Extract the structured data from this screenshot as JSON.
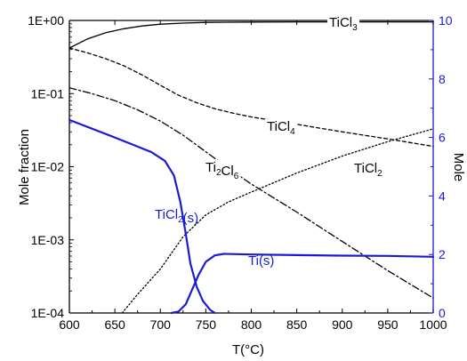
{
  "chart_data": {
    "type": "line",
    "xlabel": "T(°C)",
    "ylabel_left": "Mole fraction",
    "ylabel_right": "Mole",
    "x_range": [
      600,
      1000
    ],
    "x_ticks": [
      600,
      650,
      700,
      750,
      800,
      850,
      900,
      950,
      1000
    ],
    "y_left_log": true,
    "y_left_range": [
      0.0001,
      1
    ],
    "y_left_ticks": [
      {
        "value": 1,
        "label": "1E+00"
      },
      {
        "value": 0.1,
        "label": "1E-01"
      },
      {
        "value": 0.01,
        "label": "1E-02"
      },
      {
        "value": 0.001,
        "label": "1E-03"
      },
      {
        "value": 0.0001,
        "label": "1E-04"
      }
    ],
    "y_right_range": [
      0,
      10
    ],
    "y_right_ticks": [
      0,
      2,
      4,
      6,
      8,
      10
    ],
    "colors": {
      "left_axis": "#000000",
      "right_axis": "#1a1ad6",
      "gas_series": "#000000",
      "solid_series": "#1a1ad6"
    },
    "grid": false,
    "series": [
      {
        "name": "TiCl3",
        "label_main": "TiCl",
        "label_sub": "3",
        "axis": "left",
        "style": "solid",
        "points": [
          [
            600,
            0.42
          ],
          [
            620,
            0.56
          ],
          [
            640,
            0.68
          ],
          [
            660,
            0.77
          ],
          [
            680,
            0.84
          ],
          [
            700,
            0.89
          ],
          [
            725,
            0.92
          ],
          [
            750,
            0.94
          ],
          [
            800,
            0.95
          ],
          [
            850,
            0.955
          ],
          [
            900,
            0.955
          ],
          [
            950,
            0.955
          ],
          [
            1000,
            0.955
          ]
        ]
      },
      {
        "name": "TiCl4",
        "label_main": "TiCl",
        "label_sub": "4",
        "axis": "left",
        "style": "dash",
        "points": [
          [
            600,
            0.42
          ],
          [
            620,
            0.36
          ],
          [
            640,
            0.3
          ],
          [
            660,
            0.24
          ],
          [
            680,
            0.18
          ],
          [
            700,
            0.13
          ],
          [
            720,
            0.095
          ],
          [
            740,
            0.075
          ],
          [
            760,
            0.062
          ],
          [
            780,
            0.054
          ],
          [
            800,
            0.048
          ],
          [
            850,
            0.038
          ],
          [
            900,
            0.03
          ],
          [
            950,
            0.024
          ],
          [
            1000,
            0.019
          ]
        ]
      },
      {
        "name": "Ti2Cl6",
        "label_main": "Ti",
        "label_sub": "2",
        "label_main2": "Cl",
        "label_sub2": "6",
        "axis": "left",
        "style": "dashdot",
        "points": [
          [
            600,
            0.12
          ],
          [
            625,
            0.1
          ],
          [
            650,
            0.08
          ],
          [
            675,
            0.06
          ],
          [
            700,
            0.042
          ],
          [
            725,
            0.027
          ],
          [
            750,
            0.016
          ],
          [
            775,
            0.0095
          ],
          [
            800,
            0.0058
          ],
          [
            850,
            0.0024
          ],
          [
            900,
            0.00095
          ],
          [
            950,
            0.00038
          ],
          [
            1000,
            0.00016
          ]
        ]
      },
      {
        "name": "TiCl2",
        "label_main": "TiCl",
        "label_sub": "2",
        "axis": "left",
        "style": "dot",
        "points": [
          [
            658,
            0.0001
          ],
          [
            675,
            0.00018
          ],
          [
            700,
            0.0004
          ],
          [
            725,
            0.0011
          ],
          [
            750,
            0.0022
          ],
          [
            775,
            0.0033
          ],
          [
            800,
            0.0045
          ],
          [
            850,
            0.0082
          ],
          [
            900,
            0.014
          ],
          [
            950,
            0.022
          ],
          [
            1000,
            0.033
          ]
        ]
      },
      {
        "name": "TiCl2(s)",
        "label_main": "TiCl",
        "label_sub": "2",
        "label_tail": "(s)",
        "axis": "right",
        "style": "solid",
        "points": [
          [
            600,
            6.6
          ],
          [
            650,
            6.0
          ],
          [
            690,
            5.5
          ],
          [
            705,
            5.2
          ],
          [
            715,
            4.7
          ],
          [
            722,
            3.8
          ],
          [
            728,
            2.7
          ],
          [
            733,
            1.7
          ],
          [
            740,
            0.9
          ],
          [
            747,
            0.4
          ],
          [
            755,
            0.1
          ],
          [
            760,
            0.0
          ]
        ]
      },
      {
        "name": "Ti(s)",
        "label_main": "Ti(s)",
        "axis": "right",
        "style": "solid",
        "points": [
          [
            712,
            0.0
          ],
          [
            720,
            0.05
          ],
          [
            728,
            0.3
          ],
          [
            735,
            0.8
          ],
          [
            742,
            1.3
          ],
          [
            750,
            1.75
          ],
          [
            760,
            1.97
          ],
          [
            770,
            2.02
          ],
          [
            800,
            2.0
          ],
          [
            850,
            1.98
          ],
          [
            900,
            1.96
          ],
          [
            950,
            1.95
          ],
          [
            1000,
            1.92
          ]
        ]
      }
    ]
  }
}
